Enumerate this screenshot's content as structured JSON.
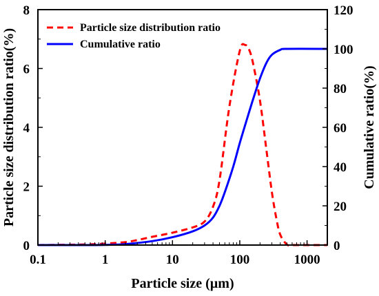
{
  "chart_data": {
    "type": "line",
    "title": "",
    "xlabel": "Particle size (µm)",
    "ylabel_left": "Particle size distribution ratio(%)",
    "ylabel_right": "Cumulative ratio(%)",
    "x_scale": "log",
    "xlim": [
      0.1,
      2000
    ],
    "ylim_left": [
      0,
      8
    ],
    "ylim_right": [
      0,
      120
    ],
    "grid": false,
    "legend_position": "top-left",
    "x_ticks": [
      {
        "value": 0.1,
        "label": "0.1"
      },
      {
        "value": 1,
        "label": "1"
      },
      {
        "value": 10,
        "label": "10"
      },
      {
        "value": 100,
        "label": "100"
      },
      {
        "value": 1000,
        "label": "1000"
      }
    ],
    "y_left_ticks": [
      {
        "value": 0,
        "label": "0"
      },
      {
        "value": 2,
        "label": "2"
      },
      {
        "value": 4,
        "label": "4"
      },
      {
        "value": 6,
        "label": "6"
      },
      {
        "value": 8,
        "label": "8"
      }
    ],
    "y_right_ticks": [
      {
        "value": 0,
        "label": "0"
      },
      {
        "value": 20,
        "label": "20"
      },
      {
        "value": 40,
        "label": "40"
      },
      {
        "value": 60,
        "label": "60"
      },
      {
        "value": 80,
        "label": "80"
      },
      {
        "value": 100,
        "label": "100"
      },
      {
        "value": 120,
        "label": "120"
      }
    ],
    "series": [
      {
        "name": "Particle size distribution ratio",
        "axis": "left",
        "color": "#ff0000",
        "style": "dashed",
        "x": [
          0.1,
          0.5,
          1,
          2,
          3,
          5,
          10,
          20,
          30,
          40,
          50,
          70,
          100,
          120,
          140,
          160,
          200,
          250,
          300,
          350,
          400,
          500,
          600,
          1000,
          2000
        ],
        "y": [
          0,
          0.02,
          0.05,
          0.1,
          0.17,
          0.28,
          0.42,
          0.6,
          0.8,
          1.3,
          2.2,
          4.7,
          6.6,
          6.8,
          6.6,
          6.1,
          4.9,
          3.2,
          1.8,
          0.9,
          0.35,
          0.02,
          0,
          0,
          0
        ]
      },
      {
        "name": "Cumulative ratio",
        "axis": "right",
        "color": "#0000ff",
        "style": "solid",
        "x": [
          0.1,
          0.5,
          1,
          2,
          5,
          10,
          20,
          30,
          40,
          50,
          60,
          80,
          100,
          130,
          160,
          200,
          250,
          300,
          400,
          500,
          2000
        ],
        "y": [
          0,
          0,
          0.1,
          0.5,
          2,
          4,
          7,
          10,
          14,
          20,
          27,
          40,
          52,
          65,
          75,
          85,
          93,
          97,
          99.5,
          100,
          100
        ]
      }
    ]
  }
}
